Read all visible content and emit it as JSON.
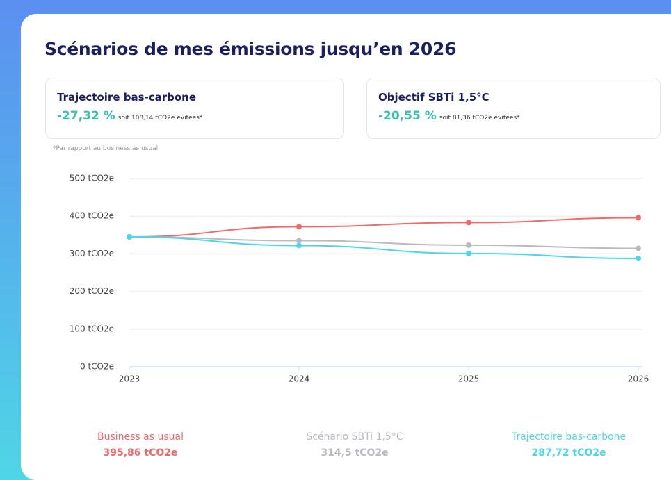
{
  "title": "Scénarios de mes émissions jusqu’en 2026",
  "cards": [
    {
      "title": "Trajectoire bas-carbone",
      "value": "-27,32 %",
      "detail": "soit 108,14 tCO2e évitées*"
    },
    {
      "title": "Objectif SBTi 1,5°C",
      "value": "-20,55 %",
      "detail": "soit 81,36 tCO2e évitées*"
    }
  ],
  "footnote": "*Par rapport au business as usual",
  "chart_data": {
    "type": "line",
    "categories": [
      "2023",
      "2024",
      "2025",
      "2026"
    ],
    "ylim": [
      0,
      500
    ],
    "yticks": [
      {
        "value": 0,
        "label": "0 tCO2e"
      },
      {
        "value": 100,
        "label": "100 tCO2e"
      },
      {
        "value": 200,
        "label": "200 tCO2e"
      },
      {
        "value": 300,
        "label": "300 tCO2e"
      },
      {
        "value": 400,
        "label": "400 tCO2e"
      },
      {
        "value": 500,
        "label": "500 tCO2e"
      }
    ],
    "grid": true,
    "series": [
      {
        "name": "Business as usual",
        "color": "#ef6b6b",
        "values": [
          345,
          372,
          383,
          395.86
        ],
        "value_labels": [
          null,
          null,
          null,
          "395,86 tCO2e"
        ]
      },
      {
        "name": "Scénario SBTi 1,5°C",
        "color": "#b9b9c1",
        "values": [
          345,
          335,
          323,
          314.5
        ],
        "value_labels": [
          null,
          null,
          null,
          "314,5 tCO2e"
        ]
      },
      {
        "name": "Trajectoire bas-carbone",
        "color": "#4ed6e6",
        "values": [
          345,
          322,
          301,
          287.72
        ],
        "value_labels": [
          null,
          null,
          null,
          "287,72 tCO2e"
        ]
      }
    ]
  }
}
